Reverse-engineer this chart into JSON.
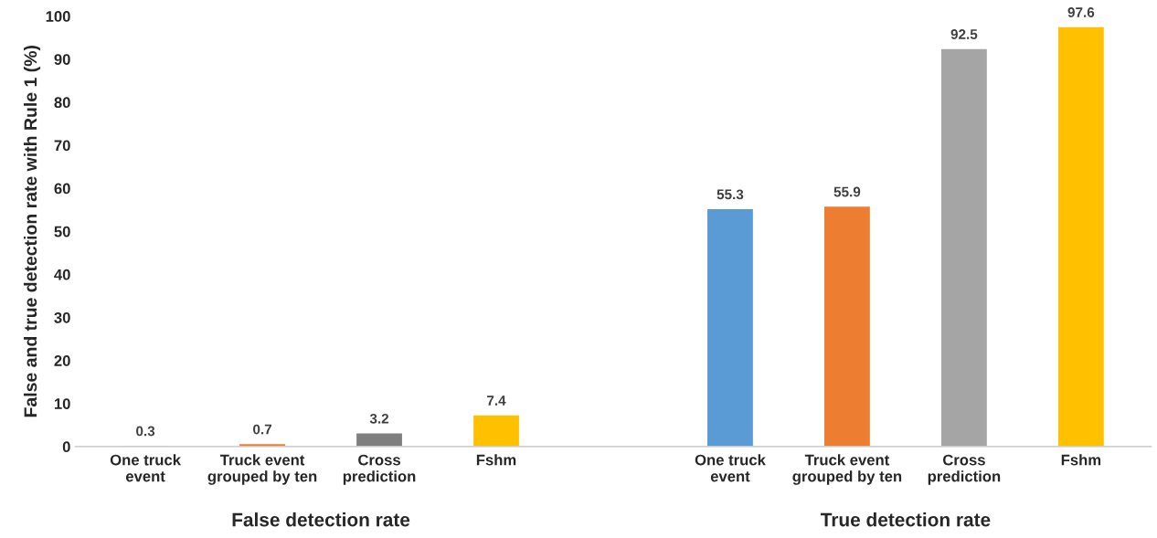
{
  "chart_data": {
    "type": "bar",
    "ylabel": "False and true detection rate with Rule 1 (%)",
    "categories": [
      "One truck\nevent",
      "Truck event\ngrouped by ten",
      "Cross\nprediction",
      "Fshm",
      null,
      "One truck\nevent",
      "Truck event\ngrouped by ten",
      "Cross\nprediction",
      "Fshm"
    ],
    "values": [
      0.3,
      0.7,
      3.2,
      7.4,
      null,
      55.3,
      55.9,
      92.5,
      97.6
    ],
    "colors": [
      "#5b9bd5",
      "#ed7d31",
      "#7f7f7f",
      "#ffc000",
      null,
      "#5b9bd5",
      "#ed7d31",
      "#a5a5a5",
      "#ffc000"
    ],
    "ylim": [
      0,
      100
    ],
    "yticks": [
      0,
      10,
      20,
      30,
      40,
      50,
      60,
      70,
      80,
      90,
      100
    ],
    "data_labels": true,
    "grid": false,
    "legend": false,
    "annotations": [
      "False detection rate",
      "True detection rate"
    ]
  }
}
